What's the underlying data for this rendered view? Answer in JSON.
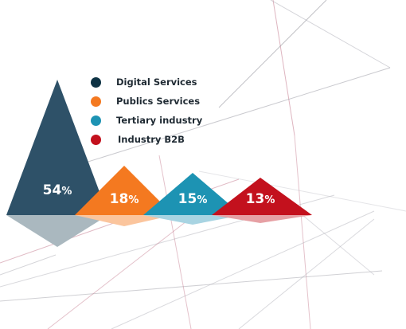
{
  "chart_data": {
    "type": "bar",
    "title": "",
    "categories": [
      "Digital Services",
      "Publics Services",
      "Tertiary industry",
      "Industry B2B"
    ],
    "values": [
      54,
      18,
      15,
      13
    ],
    "labels": [
      "54%",
      "18%",
      "15%",
      "13%"
    ],
    "colors": [
      "#2e5168",
      "#f47920",
      "#1d93b3",
      "#c3111d"
    ],
    "legend": [
      {
        "label": "Digital Services",
        "color": "#0e3244"
      },
      {
        "label": "Publics Services",
        "color": "#f47920"
      },
      {
        "label": "Tertiary industry",
        "color": "#1d93b3"
      },
      {
        "label": "Industry B2B",
        "color": "#c3111d"
      }
    ],
    "legend_position": "top",
    "grid": false
  }
}
